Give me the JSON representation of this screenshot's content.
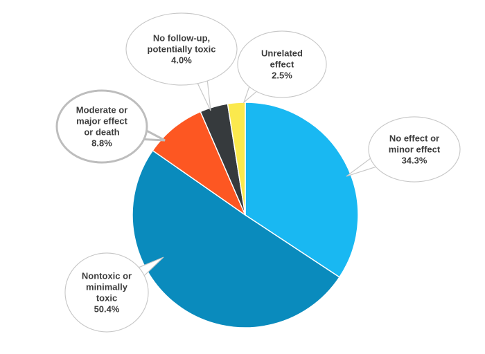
{
  "chart_data": {
    "type": "pie",
    "title": "",
    "slices": [
      {
        "label": [
          "No effect or",
          "minor effect"
        ],
        "value": 34.3,
        "value_label": "34.3%",
        "color": "#19b8f2"
      },
      {
        "label": [
          "Nontoxic or",
          "minimally",
          "toxic"
        ],
        "value": 50.4,
        "value_label": "50.4%",
        "color": "#0a8bbd"
      },
      {
        "label": [
          "Moderate or",
          "major effect",
          "or death"
        ],
        "value": 8.8,
        "value_label": "8.8%",
        "color": "#fd5722"
      },
      {
        "label": [
          "No follow-up,",
          "potentially toxic"
        ],
        "value": 4.0,
        "value_label": "4.0%",
        "color": "#363a3d"
      },
      {
        "label": [
          "Unrelated",
          "effect"
        ],
        "value": 2.5,
        "value_label": "2.5%",
        "color": "#fbe94d"
      }
    ],
    "start_angle_deg": 0,
    "direction": "clockwise",
    "legend": "none",
    "label_style": "callout-bubbles"
  }
}
